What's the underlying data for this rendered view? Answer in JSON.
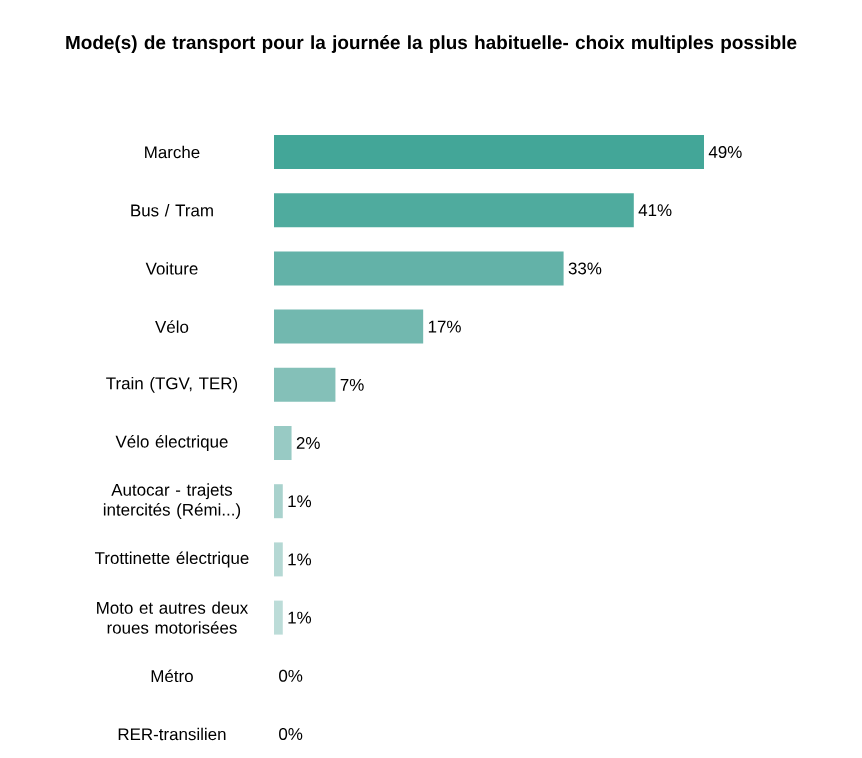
{
  "chart_data": {
    "type": "bar",
    "orientation": "horizontal",
    "title": "Mode(s) de transport pour la journée la plus habituelle- choix multiples possible",
    "categories": [
      "Marche",
      "Bus / Tram",
      "Voiture",
      "Vélo",
      "Train (TGV, TER)",
      "Vélo électrique",
      "Autocar - trajets intercités (Rémi...)",
      "Trottinette électrique",
      "Moto et autres deux roues motorisées",
      "Métro",
      "RER-transilien"
    ],
    "values": [
      49,
      41,
      33,
      17,
      7,
      2,
      1,
      1,
      1,
      0,
      0
    ],
    "value_labels": [
      "49%",
      "41%",
      "33%",
      "17%",
      "7%",
      "2%",
      "1%",
      "1%",
      "1%",
      "0%",
      "0%"
    ],
    "colors": [
      "#43a698",
      "#4fab9e",
      "#63b2a8",
      "#72b8af",
      "#84c0b8",
      "#98cac4",
      "#a9d2cd",
      "#b5d8d4",
      "#bcdcd8",
      "#c8e2df",
      "#d0e6e3"
    ]
  }
}
